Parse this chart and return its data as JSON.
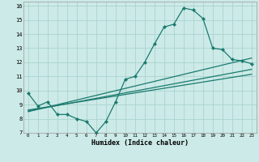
{
  "xlabel": "Humidex (Indice chaleur)",
  "background_color": "#cceae7",
  "grid_color": "#aad4d0",
  "line_color": "#1a7a6e",
  "xlim": [
    -0.5,
    23.5
  ],
  "ylim": [
    7,
    16.3
  ],
  "xticks": [
    0,
    1,
    2,
    3,
    4,
    5,
    6,
    7,
    8,
    9,
    10,
    11,
    12,
    13,
    14,
    15,
    16,
    17,
    18,
    19,
    20,
    21,
    22,
    23
  ],
  "yticks": [
    7,
    8,
    9,
    10,
    11,
    12,
    13,
    14,
    15,
    16
  ],
  "series1_x": [
    0,
    1,
    2,
    3,
    4,
    5,
    6,
    7,
    8,
    9,
    10,
    11,
    12,
    13,
    14,
    15,
    16,
    17,
    18,
    19,
    20,
    21,
    22,
    23
  ],
  "series1_y": [
    9.8,
    8.9,
    9.2,
    8.3,
    8.3,
    8.0,
    7.8,
    7.0,
    7.8,
    9.2,
    10.8,
    11.0,
    12.0,
    13.3,
    14.5,
    14.7,
    15.85,
    15.7,
    15.1,
    13.0,
    12.9,
    12.2,
    12.1,
    11.9
  ],
  "line2_x": [
    0,
    23
  ],
  "line2_y": [
    8.5,
    12.3
  ],
  "line3_x": [
    0,
    23
  ],
  "line3_y": [
    8.55,
    11.5
  ],
  "line4_x": [
    0,
    23
  ],
  "line4_y": [
    8.62,
    11.15
  ],
  "markersize": 2.2,
  "linewidth": 0.9
}
